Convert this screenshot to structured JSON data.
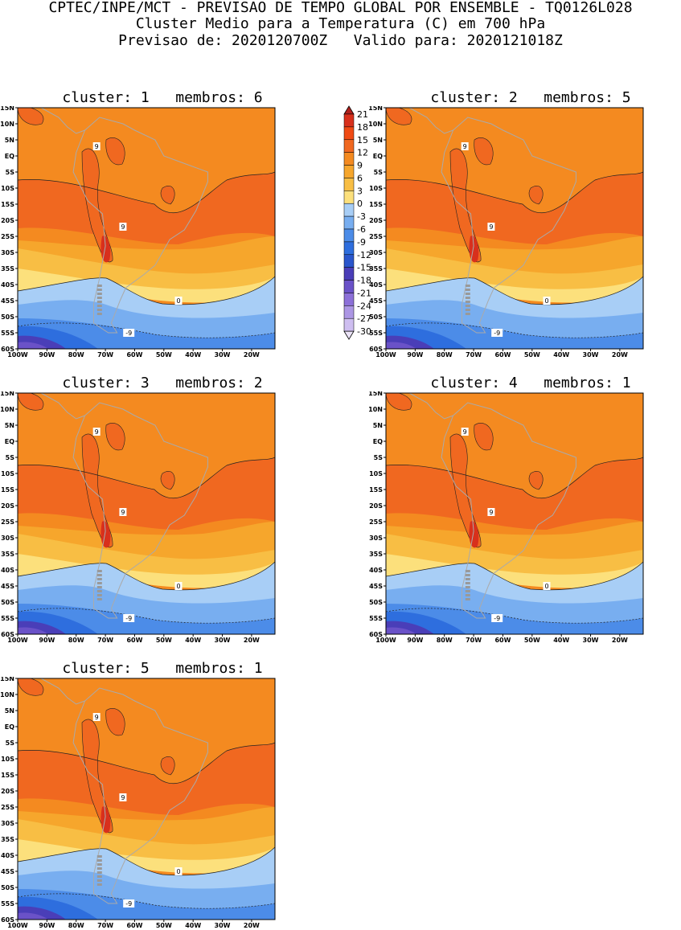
{
  "header": {
    "line1": "CPTEC/INPE/MCT - PREVISAO DE TEMPO GLOBAL POR ENSEMBLE - TQ0126L028",
    "line2": "Cluster Medio para a Temperatura (C) em 700 hPa",
    "line3": "Previsao de: 2020120700Z   Valido para: 2020121018Z"
  },
  "panels": [
    {
      "title": "cluster: 1   membros: 6",
      "label_pos": "9",
      "label_zero": "0",
      "label_neg": "-9"
    },
    {
      "title": "cluster: 2   membros: 5",
      "label_pos": "9",
      "label_zero": "0",
      "label_neg": "-9"
    },
    {
      "title": "cluster: 3   membros: 2",
      "label_pos": "9",
      "label_zero": "0",
      "label_neg": "-9"
    },
    {
      "title": "cluster: 4   membros: 1",
      "label_pos": "9",
      "label_zero": "0",
      "label_neg": "-9"
    },
    {
      "title": "cluster: 5   membros: 1",
      "label_pos": "9",
      "label_zero": "0",
      "label_neg": "-9"
    }
  ],
  "lat_ticks": [
    "15N",
    "10N",
    "5N",
    "EQ",
    "5S",
    "10S",
    "15S",
    "20S",
    "25S",
    "30S",
    "35S",
    "40S",
    "45S",
    "50S",
    "55S",
    "60S"
  ],
  "lon_ticks": [
    "100W",
    "90W",
    "80W",
    "70W",
    "60W",
    "50W",
    "40W",
    "30W",
    "20W"
  ],
  "colorbar": {
    "labels": [
      "21",
      "18",
      "15",
      "12",
      "9",
      "6",
      "3",
      "0",
      "-3",
      "-6",
      "-9",
      "-12",
      "-15",
      "-18",
      "-21",
      "-24",
      "-27",
      "-30"
    ],
    "colors": [
      "#b0201c",
      "#d8301c",
      "#f04a14",
      "#f06820",
      "#f48a20",
      "#f6a62c",
      "#f8be44",
      "#fce07c",
      "#a8cef6",
      "#78aef0",
      "#4c8ce8",
      "#2e6ede",
      "#2a56cc",
      "#4a3eb8",
      "#6a52c8",
      "#8c70d8",
      "#ac96e4",
      "#cebef0",
      "#ece4f8"
    ]
  }
}
